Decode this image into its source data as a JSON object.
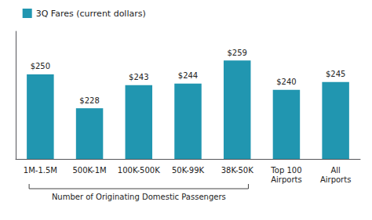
{
  "chart_data": {
    "type": "bar",
    "categories": [
      "1M-1.5M",
      "500K-1M",
      "100K-500K",
      "50K-99K",
      "38K-50K",
      "Top 100\nAirports",
      "All\nAirports"
    ],
    "series": [
      {
        "name": "3Q Fares (current dollars)",
        "color": "#2196b0",
        "values": [
          250,
          228,
          243,
          244,
          259,
          240,
          245
        ],
        "value_labels": [
          "$250",
          "$228",
          "$243",
          "$244",
          "$259",
          "$240",
          "$245"
        ]
      }
    ],
    "ylim": [
      195,
      278
    ],
    "data_labels": true,
    "tick_labels": "x",
    "grid": false,
    "legend": "upper left",
    "annotations": [
      {
        "text": "Number of Originating Domestic Passengers",
        "from": "1M-1.5M",
        "to": "38K-50K"
      }
    ]
  }
}
